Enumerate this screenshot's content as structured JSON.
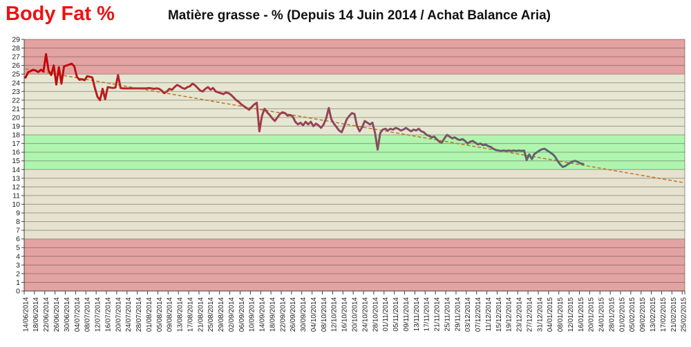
{
  "header": {
    "corner_label": "Body Fat %",
    "corner_label_color": "#ee1111",
    "title": "Matière grasse - % (Depuis 14 Juin 2014 / Achat Balance Aria)"
  },
  "chart_data": {
    "type": "line",
    "title": "Matière grasse - % (Depuis 14 Juin 2014 / Achat Balance Aria)",
    "xlabel": "",
    "ylabel": "",
    "ylim": [
      0,
      29
    ],
    "y_tick_step": 1,
    "grid": true,
    "gridline_color": "rgba(70,65,50,0.45)",
    "axis_color": "#404040",
    "tick_label_color": "#1a1a1a",
    "x_start_date": "14/06/2014",
    "x_end_date": "25/02/2015",
    "days_total": 257,
    "x_label_every_days": 4,
    "x_labels": [
      "14/06/2014",
      "18/06/2014",
      "22/06/2014",
      "26/06/2014",
      "30/06/2014",
      "04/07/2014",
      "08/07/2014",
      "12/07/2014",
      "16/07/2014",
      "20/07/2014",
      "24/07/2014",
      "28/07/2014",
      "01/08/2014",
      "05/08/2014",
      "09/08/2014",
      "13/08/2014",
      "17/08/2014",
      "21/08/2014",
      "25/08/2014",
      "29/08/2014",
      "02/09/2014",
      "06/09/2014",
      "10/09/2014",
      "14/09/2014",
      "18/09/2014",
      "22/09/2014",
      "26/09/2014",
      "30/09/2014",
      "04/10/2014",
      "08/10/2014",
      "12/10/2014",
      "16/10/2014",
      "20/10/2014",
      "24/10/2014",
      "28/10/2014",
      "01/11/2014",
      "05/11/2014",
      "09/11/2014",
      "13/11/2014",
      "17/11/2014",
      "21/11/2014",
      "25/11/2014",
      "29/11/2014",
      "03/12/2014",
      "07/12/2014",
      "11/12/2014",
      "15/12/2014",
      "19/12/2014",
      "23/12/2014",
      "27/12/2014",
      "31/12/2014",
      "04/01/2015",
      "08/01/2015",
      "12/01/2015",
      "16/01/2015",
      "20/01/2015",
      "24/01/2015",
      "28/01/2015",
      "01/02/2015",
      "05/02/2015",
      "09/02/2015",
      "13/02/2015",
      "17/02/2015",
      "21/02/2015",
      "25/02/2015"
    ],
    "bands": [
      {
        "from": 25,
        "to": 29,
        "color": "#e3a3a2",
        "meaning": "too-high"
      },
      {
        "from": 18,
        "to": 25,
        "color": "#e6e7d2",
        "meaning": "above-target"
      },
      {
        "from": 14,
        "to": 18,
        "color": "#b0f5af",
        "meaning": "target"
      },
      {
        "from": 6,
        "to": 14,
        "color": "#e6e2cf",
        "meaning": "below-target"
      },
      {
        "from": 0,
        "to": 6,
        "color": "#e3a3a2",
        "meaning": "too-low"
      }
    ],
    "series": [
      {
        "name": "Body Fat %",
        "start_day": 0,
        "start_date": "14/06/2014",
        "last_date": "17/01/2015",
        "line_width": 3,
        "color_gradient": [
          "#c40000",
          "#b22a2e",
          "#a03b4c",
          "#8c4a60",
          "#745769",
          "#566a70"
        ],
        "values": [
          24.6,
          25.2,
          25.35,
          25.5,
          25.4,
          25.25,
          25.5,
          25.3,
          27.3,
          25.4,
          24.9,
          26.0,
          23.8,
          25.8,
          23.9,
          25.9,
          26.0,
          26.1,
          26.2,
          25.9,
          24.7,
          24.35,
          24.4,
          24.3,
          24.75,
          24.7,
          24.6,
          23.4,
          22.4,
          22.0,
          23.3,
          22.1,
          23.5,
          23.45,
          23.4,
          23.45,
          24.9,
          23.4,
          23.35,
          23.35,
          23.35,
          23.35,
          23.35,
          23.35,
          23.35,
          23.35,
          23.35,
          23.35,
          23.4,
          23.35,
          23.3,
          23.35,
          23.3,
          23.1,
          22.8,
          23.0,
          23.3,
          23.2,
          23.5,
          23.75,
          23.6,
          23.4,
          23.3,
          23.5,
          23.6,
          23.9,
          23.7,
          23.4,
          23.1,
          23.0,
          23.3,
          23.5,
          23.2,
          23.4,
          23.0,
          22.9,
          22.8,
          22.7,
          22.9,
          22.8,
          22.6,
          22.3,
          22.0,
          21.8,
          21.5,
          21.3,
          21.1,
          20.9,
          21.2,
          21.5,
          21.7,
          18.4,
          20.2,
          21.0,
          20.6,
          20.3,
          19.9,
          19.6,
          20.0,
          20.4,
          20.6,
          20.5,
          20.2,
          20.3,
          20.1,
          19.5,
          19.2,
          19.4,
          19.1,
          19.5,
          19.2,
          19.5,
          19.0,
          19.3,
          19.1,
          18.8,
          19.2,
          19.9,
          21.1,
          19.8,
          19.3,
          18.9,
          18.5,
          18.3,
          19.0,
          19.8,
          20.2,
          20.5,
          20.4,
          19.0,
          18.4,
          18.9,
          19.6,
          19.4,
          19.2,
          19.4,
          18.2,
          16.3,
          18.2,
          18.6,
          18.7,
          18.5,
          18.7,
          18.6,
          18.8,
          18.7,
          18.5,
          18.6,
          18.8,
          18.6,
          18.4,
          18.6,
          18.5,
          18.7,
          18.4,
          18.3,
          18.0,
          17.9,
          17.7,
          17.8,
          17.5,
          17.2,
          17.1,
          17.6,
          18.0,
          17.8,
          17.6,
          17.7,
          17.5,
          17.4,
          17.5,
          17.3,
          17.0,
          17.2,
          17.3,
          17.1,
          16.9,
          17.0,
          16.8,
          16.9,
          16.7,
          16.6,
          16.4,
          16.25,
          16.2,
          16.15,
          16.2,
          16.15,
          16.2,
          16.15,
          16.2,
          16.15,
          16.2,
          16.15,
          16.2,
          15.1,
          15.75,
          15.2,
          15.8,
          16.0,
          16.2,
          16.35,
          16.4,
          16.2,
          16.0,
          15.8,
          15.5,
          15.0,
          14.6,
          14.3,
          14.4,
          14.6,
          14.8,
          14.95,
          15.0,
          14.85,
          14.7,
          14.65
        ]
      }
    ],
    "trendline": {
      "type": "linear",
      "start_value": 25.6,
      "end_value": 12.5,
      "spans_days": [
        0,
        256
      ],
      "style": "dashed",
      "color": "#c07a28"
    },
    "legend": "none"
  }
}
